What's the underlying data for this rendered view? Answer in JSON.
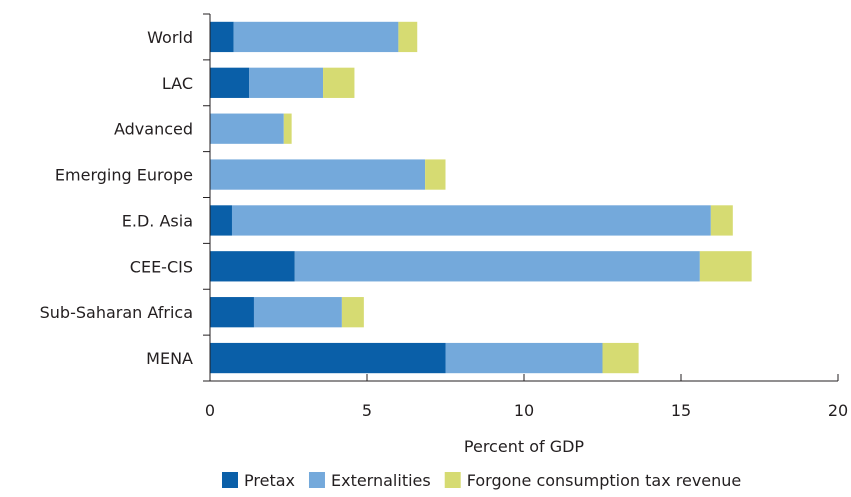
{
  "chart_data": {
    "type": "bar",
    "orientation": "horizontal",
    "stacked": true,
    "categories": [
      "World",
      "LAC",
      "Advanced",
      "Emerging Europe",
      "E.D. Asia",
      "CEE-CIS",
      "Sub-Saharan Africa",
      "MENA"
    ],
    "series": [
      {
        "name": "Pretax",
        "color": "#0a5fa8",
        "values": [
          0.75,
          1.25,
          0.0,
          0.0,
          0.7,
          2.7,
          1.4,
          7.5
        ]
      },
      {
        "name": "Externalities",
        "color": "#74a9db",
        "values": [
          5.25,
          2.35,
          2.35,
          6.85,
          15.25,
          12.9,
          2.8,
          5.0
        ]
      },
      {
        "name": "Forgone consumption tax revenue",
        "color": "#d6db72",
        "values": [
          0.6,
          1.0,
          0.25,
          0.65,
          0.7,
          1.65,
          0.7,
          1.15
        ]
      }
    ],
    "xticks": [
      "0",
      "5",
      "10",
      "15",
      "20"
    ],
    "xlim": [
      0,
      20
    ],
    "xlabel": "Percent of GDP",
    "ylabel": "",
    "title": "",
    "grid": false,
    "legend_position": "bottom"
  }
}
